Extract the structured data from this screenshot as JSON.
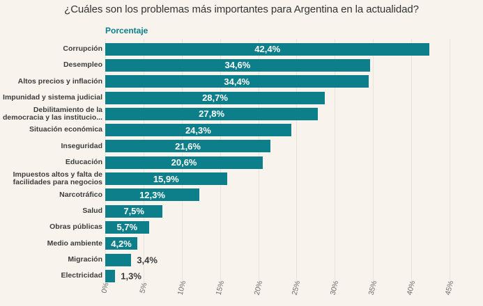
{
  "page": {
    "title": "¿Cuáles son los problemas más importantes para Argentina en la actualidad?"
  },
  "chart_data": {
    "type": "bar",
    "orientation": "horizontal",
    "title": "¿Cuáles son los problemas más importantes para Argentina en la actualidad?",
    "xlabel": "Porcentaje",
    "xlim": [
      0,
      45
    ],
    "grid": true,
    "x_ticks": [
      "0%",
      "5%",
      "10%",
      "15%",
      "20%",
      "25%",
      "30%",
      "35%",
      "40%",
      "45%"
    ],
    "categories": [
      "Corrupción",
      "Desempleo",
      "Altos precios y inflación",
      "Impunidad y sistema judicial",
      "Debilitamiento de la\ndemocracia y las institucio...",
      "Situación económica",
      "Inseguridad",
      "Educación",
      "Impuestos altos y falta de\nfacilidades para negocios",
      "Narcotráfico",
      "Salud",
      "Obras públicas",
      "Medio ambiente",
      "Migración",
      "Electricidad"
    ],
    "values": [
      42.4,
      34.6,
      34.4,
      28.7,
      27.8,
      24.3,
      21.6,
      20.6,
      15.9,
      12.3,
      7.5,
      5.7,
      4.2,
      3.4,
      1.3
    ],
    "value_labels": [
      "42,4%",
      "34,6%",
      "34,4%",
      "28,7%",
      "27,8%",
      "24,3%",
      "21,6%",
      "20,6%",
      "15,9%",
      "12,3%",
      "7,5%",
      "5,7%",
      "4,2%",
      "3,4%",
      "1,3%"
    ]
  },
  "colors": {
    "background": "#f8f3ec",
    "bar": "#0d7f8b",
    "accent": "#0d7f8b",
    "title_text": "#333333",
    "label_text": "#3d3d3d",
    "axis_text": "#6e6e6e",
    "gridline": "#e9e3da"
  }
}
